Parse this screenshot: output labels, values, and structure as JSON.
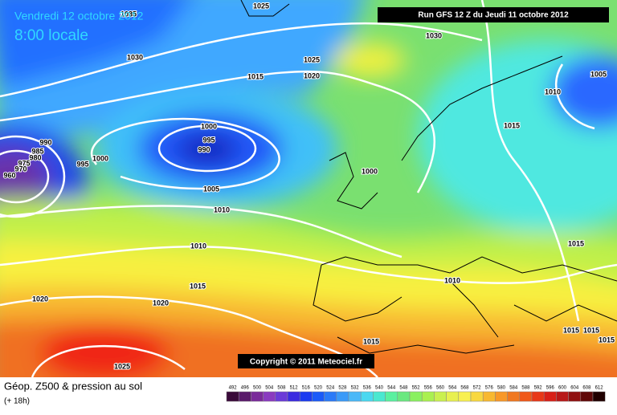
{
  "header": {
    "date": "Vendredi 12 octobre 2012",
    "time": "8:00 locale",
    "run": "Run GFS 12 Z du Jeudi 11 octobre 2012"
  },
  "isobar_labels": [
    "1035",
    "1025",
    "1030",
    "1030",
    "1025",
    "1015",
    "1020",
    "1005",
    "1010",
    "1015",
    "990",
    "985",
    "980",
    "975",
    "970",
    "960",
    "1000",
    "995",
    "1000",
    "995",
    "990",
    "1000",
    "1005",
    "1010",
    "1010",
    "1010",
    "1015",
    "1015",
    "1020",
    "1020",
    "1015",
    "1015",
    "1015",
    "1015",
    "1025"
  ],
  "copyright": "Copyright © 2011 Meteociel.fr",
  "footer": {
    "title": "Géop. Z500 & pression au sol",
    "subtitle": "(+ 18h)"
  },
  "legend": {
    "labels": [
      492,
      496,
      500,
      504,
      508,
      512,
      516,
      520,
      524,
      528,
      532,
      536,
      540,
      544,
      548,
      552,
      556,
      560,
      564,
      568,
      572,
      576,
      580,
      584,
      588,
      592,
      596,
      600,
      604,
      608,
      612
    ],
    "colors": [
      "#3a0a3a",
      "#5a1a6a",
      "#7a2a9a",
      "#8a3ac0",
      "#6a3ad8",
      "#3a2ae0",
      "#1a3af0",
      "#1a5af8",
      "#2a7af8",
      "#3a9af8",
      "#4ab8f8",
      "#4ad8f0",
      "#4ae8d0",
      "#5af0a0",
      "#6ae880",
      "#8af060",
      "#aaf050",
      "#caf050",
      "#e8f050",
      "#f8f050",
      "#f8d840",
      "#f8b830",
      "#f89828",
      "#f07820",
      "#f05818",
      "#e83818",
      "#d82018",
      "#b81818",
      "#901010",
      "#600808",
      "#200000"
    ]
  }
}
